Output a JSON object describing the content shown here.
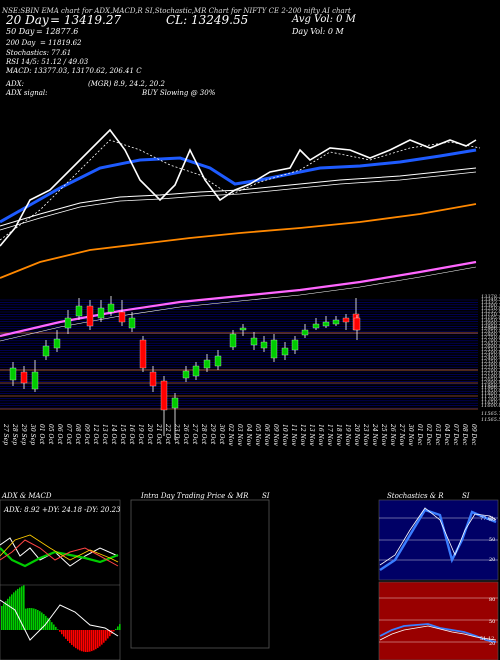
{
  "header": {
    "code_line": "NSE:SBIN  EMA chart for ADX,MACD,R  SI,Stochastic,MR  Chart for NIFTY CE  2-200 nifty AI chart",
    "ema20_label": "20 Day",
    "ema20_value": "= 13419.27",
    "close_label": "CL: 13249.55",
    "sma50_label": "50 Day",
    "sma50_value": "= 12877.6",
    "avg_vol_label": "Avg Vol: 0  M",
    "day_vol_label": "Day Vol: 0   M",
    "sma200_label": "200 Day",
    "sma200_value": "= 11819.62",
    "stoch_line": "Stochastics: 77.61",
    "rsi_line": "RSI 14/5: 51.12  /  49.03",
    "macd_line": "MACD: 13377.03,  13170.62,  206.41 C",
    "adx_line": "ADX:",
    "adx_values": "(MGR) 8.9,  24.2,  20.2",
    "adx_signal_label": "ADX  signal:",
    "adx_signal_value": "BUY Slowing @ 30%"
  },
  "dates": [
    "27 Sep",
    "28 Sep",
    "29 Sep",
    "30 Sep",
    "01 Oct",
    "05 Oct",
    "06 Oct",
    "07 Oct",
    "08 Oct",
    "09 Oct",
    "12 Oct",
    "13 Oct",
    "14 Oct",
    "15 Oct",
    "16 Oct",
    "19 Oct",
    "20 Oct",
    "21 Oct",
    "22 Oct",
    "23 Oct",
    "26 Oct",
    "27 Oct",
    "28 Oct",
    "29 Oct",
    "30 Oct",
    "02 Nov",
    "03 Nov",
    "04 Nov",
    "05 Nov",
    "06 Nov",
    "09 Nov",
    "10 Nov",
    "11 Nov",
    "12 Nov",
    "13 Nov",
    "16 Nov",
    "17 Nov",
    "18 Nov",
    "19 Nov",
    "20 Nov",
    "23 Nov",
    "24 Nov",
    "25 Nov",
    "26 Nov",
    "27 Nov",
    "30 Nov",
    "01 Dec",
    "02 Dec",
    "03 Dec",
    "04 Dec",
    "07 Dec",
    "08 Dec",
    "09 Dec"
  ],
  "price_ticks": [
    "13378.30",
    "13349.55",
    "13333.70",
    "13300.30",
    "13250.00",
    "13232.00",
    "13150.35",
    "13105.00",
    "13050.55",
    "13000.20",
    "12950.35",
    "12900.10",
    "12850.40",
    "12800.75",
    "12750.00",
    "12700.55",
    "12650.30",
    "12600.80",
    "12550.20",
    "12500.60",
    "12450.00",
    "12400.40",
    "12350.10",
    "12300.90",
    "12250.50",
    "12200.25",
    "12150.00",
    "12100.60",
    "12050.20",
    "12000.90",
    "11950.30",
    "11900.50",
    "11850.00",
    "11800.20",
    "11750.90",
    "11700.40",
    "11650.10",
    "11600.60"
  ],
  "bottom_ticks": [
    "11565.70",
    "11565.50"
  ],
  "panels": {
    "adx_title": "ADX  & MACD",
    "adx_values": "ADX: 8.92  +DY: 24.18  -DY: 20.23",
    "intraday_title": "Intra  Day Trading Price  & MR",
    "intraday_suffix": "SI",
    "stoch_title": "Stochastics & R",
    "stoch_suffix": "SI",
    "stoch_ticks": [
      "80",
      "50",
      "20"
    ],
    "rsi_ticks": [
      "80",
      "50",
      "20"
    ],
    "stoch_value": "77.61",
    "rsi_value": "51.12"
  },
  "colors": {
    "background": "#000000",
    "bull": "#00cc00",
    "bear": "#ff0000",
    "ema_blue": "#1e5bff",
    "sma_orange": "#ff8800",
    "sma200_magenta": "#ff66ff",
    "rsi_panel": "#990000",
    "stoch_panel": "#000066"
  }
}
